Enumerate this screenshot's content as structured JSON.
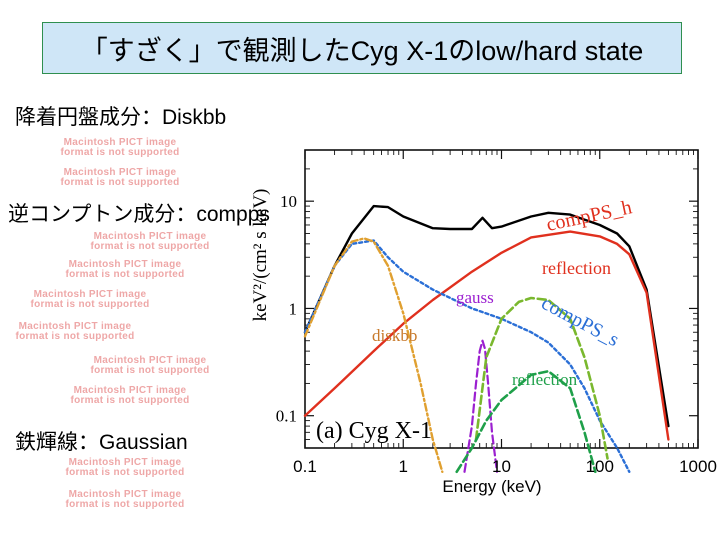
{
  "slide": {
    "title": "「すざく」で観測したCyg X-1のlow/hard state",
    "labels": {
      "disk": "降着円盤成分：Diskbb",
      "compton": "逆コンプトン成分：compps",
      "iron": "鉄輝線：Gaussian"
    },
    "placeholder_text": "Macintosh PICT image format is not supported"
  },
  "chart_data": {
    "type": "line",
    "xlabel": "Energy (keV)",
    "ylabel": "keV²/(cm² s keV)",
    "x_scale": "log",
    "y_scale": "log",
    "xlim": [
      0.1,
      1000
    ],
    "ylim": [
      0.05,
      30
    ],
    "x_ticks": [
      "0.1",
      "1",
      "10",
      "100",
      "1000"
    ],
    "y_ticks": [
      "10",
      "1",
      "0.1"
    ],
    "panel_label": "(a) Cyg X-1",
    "annotations": [
      "compPS_h",
      "reflection",
      "gauss",
      "compPS_s",
      "diskbb",
      "reflection"
    ],
    "colors": {
      "total": "#000000",
      "compPS_h": "#e0301e",
      "compPS_s": "#2b6fd6",
      "diskbb": "#e0a030",
      "gauss": "#9b1fd0",
      "reflection_s": "#7ab82e",
      "reflection_h": "#1fa04a"
    },
    "series": [
      {
        "id": "total",
        "x": [
          0.1,
          0.2,
          0.3,
          0.5,
          0.7,
          1,
          2,
          3,
          5,
          6.4,
          8,
          10,
          20,
          30,
          50,
          100,
          150,
          200,
          300,
          500
        ],
        "y": [
          0.6,
          2.5,
          5,
          9,
          8.8,
          7.2,
          5.6,
          5.5,
          5.5,
          7,
          5.6,
          5.8,
          7.2,
          7.8,
          7.5,
          6,
          5,
          3.8,
          1.5,
          0.08
        ]
      },
      {
        "id": "compPS_h",
        "x": [
          0.1,
          0.2,
          0.5,
          1,
          2,
          5,
          10,
          20,
          50,
          100,
          150,
          200,
          300,
          500
        ],
        "y": [
          0.1,
          0.18,
          0.4,
          0.72,
          1.2,
          2.2,
          3.3,
          4.6,
          5.2,
          4.7,
          4,
          3.2,
          1.4,
          0.06
        ]
      },
      {
        "id": "compPS_s",
        "x": [
          0.1,
          0.2,
          0.3,
          0.5,
          0.7,
          1,
          2,
          5,
          10,
          20,
          30,
          50,
          70,
          100,
          150,
          200
        ],
        "y": [
          0.6,
          2.5,
          4,
          4.3,
          3,
          2.2,
          1.5,
          1,
          0.8,
          0.6,
          0.48,
          0.3,
          0.18,
          0.09,
          0.05,
          0.03
        ]
      },
      {
        "id": "diskbb",
        "x": [
          0.1,
          0.2,
          0.3,
          0.4,
          0.5,
          0.7,
          1,
          1.5,
          2,
          2.5
        ],
        "y": [
          0.55,
          2.5,
          4.2,
          4.5,
          4.2,
          2.5,
          0.9,
          0.2,
          0.06,
          0.03
        ]
      },
      {
        "id": "gauss",
        "x": [
          4.2,
          5,
          5.5,
          6,
          6.4,
          6.8,
          7.3,
          8,
          9
        ],
        "y": [
          0.03,
          0.08,
          0.2,
          0.4,
          0.5,
          0.42,
          0.2,
          0.07,
          0.03
        ]
      },
      {
        "id": "reflection_s",
        "x": [
          5.5,
          7,
          10,
          15,
          20,
          30,
          50,
          70,
          100,
          120
        ],
        "y": [
          0.06,
          0.35,
          0.8,
          1.15,
          1.25,
          1.2,
          0.8,
          0.35,
          0.1,
          0.04
        ]
      },
      {
        "id": "reflection_h",
        "x": [
          3.5,
          5,
          7,
          10,
          20,
          30,
          50,
          70,
          90
        ],
        "y": [
          0.03,
          0.05,
          0.09,
          0.14,
          0.24,
          0.26,
          0.18,
          0.07,
          0.03
        ]
      }
    ]
  }
}
